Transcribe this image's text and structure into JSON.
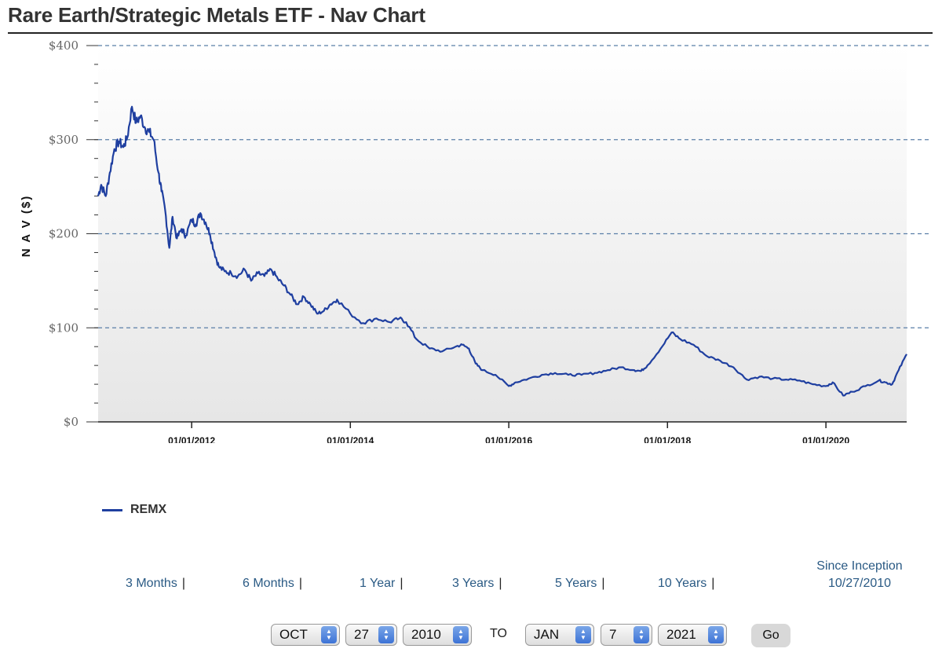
{
  "header": {
    "title": "Rare Earth/Strategic Metals ETF - Nav Chart"
  },
  "chart_data": {
    "type": "line",
    "title": "",
    "xlabel": "",
    "ylabel": "N A V ($)",
    "y_ticks": [
      "$0",
      "$100",
      "$200",
      "$300",
      "$400"
    ],
    "ylim": [
      0,
      400
    ],
    "xlim": [
      "2010-10-27",
      "2021-01-07"
    ],
    "x_ticks": [
      "01/01/2012",
      "01/01/2014",
      "01/01/2016",
      "01/01/2018",
      "01/01/2020"
    ],
    "grid": true,
    "legend": "bottom-left",
    "colors": {
      "line": "#1f3fa0",
      "grid": "#5a7fa8",
      "plot_bg_top": "#ffffff",
      "plot_bg_bottom": "#e6e6e6"
    },
    "series": [
      {
        "name": "REMX",
        "x": [
          "2010-10-27",
          "2010-11-10",
          "2010-12-01",
          "2010-12-20",
          "2011-01-10",
          "2011-01-31",
          "2011-02-20",
          "2011-03-10",
          "2011-04-01",
          "2011-04-20",
          "2011-05-10",
          "2011-06-01",
          "2011-06-20",
          "2011-07-10",
          "2011-08-01",
          "2011-08-15",
          "2011-09-01",
          "2011-09-20",
          "2011-10-05",
          "2011-10-25",
          "2011-11-15",
          "2011-12-05",
          "2012-01-01",
          "2012-01-20",
          "2012-02-10",
          "2012-03-05",
          "2012-03-25",
          "2012-04-15",
          "2012-05-05",
          "2012-06-01",
          "2012-07-01",
          "2012-08-01",
          "2012-09-01",
          "2012-10-01",
          "2012-11-01",
          "2012-12-01",
          "2013-01-01",
          "2013-02-01",
          "2013-03-01",
          "2013-04-01",
          "2013-05-01",
          "2013-06-01",
          "2013-07-01",
          "2013-08-01",
          "2013-09-01",
          "2013-10-01",
          "2013-11-01",
          "2014-01-01",
          "2014-03-01",
          "2014-05-01",
          "2014-07-01",
          "2014-08-15",
          "2014-09-15",
          "2014-11-01",
          "2015-01-01",
          "2015-03-01",
          "2015-05-01",
          "2015-06-01",
          "2015-07-01",
          "2015-08-01",
          "2015-09-01",
          "2015-11-01",
          "2016-01-01",
          "2016-02-01",
          "2016-04-01",
          "2016-06-01",
          "2016-08-01",
          "2016-10-01",
          "2016-12-01",
          "2017-02-01",
          "2017-04-01",
          "2017-06-01",
          "2017-08-01",
          "2017-09-01",
          "2017-10-01",
          "2017-12-01",
          "2018-01-20",
          "2018-03-01",
          "2018-05-01",
          "2018-07-01",
          "2018-09-01",
          "2018-11-01",
          "2019-01-01",
          "2019-03-01",
          "2019-05-01",
          "2019-07-01",
          "2019-09-01",
          "2019-11-01",
          "2020-01-01",
          "2020-02-01",
          "2020-03-20",
          "2020-05-01",
          "2020-07-01",
          "2020-09-01",
          "2020-10-01",
          "2020-11-01",
          "2020-12-01",
          "2021-01-07"
        ],
        "values": [
          240,
          252,
          240,
          265,
          290,
          298,
          292,
          302,
          335,
          318,
          325,
          312,
          308,
          300,
          265,
          245,
          225,
          185,
          218,
          195,
          205,
          198,
          215,
          210,
          222,
          212,
          200,
          180,
          165,
          160,
          158,
          155,
          162,
          150,
          158,
          155,
          162,
          152,
          145,
          135,
          125,
          133,
          125,
          115,
          118,
          125,
          130,
          115,
          105,
          110,
          106,
          110,
          106,
          88,
          78,
          75,
          80,
          82,
          78,
          62,
          55,
          50,
          38,
          42,
          46,
          50,
          52,
          50,
          50,
          52,
          55,
          58,
          55,
          54,
          60,
          78,
          95,
          88,
          82,
          70,
          65,
          58,
          45,
          48,
          46,
          45,
          44,
          40,
          38,
          42,
          28,
          32,
          38,
          44,
          42,
          40,
          55,
          72
        ]
      }
    ]
  },
  "legend": {
    "series_label": "REMX"
  },
  "ranges": {
    "r3m": "3 Months",
    "r6m": "6 Months",
    "r1y": "1 Year",
    "r3y": "3 Years",
    "r5y": "5 Years",
    "r10y": "10 Years",
    "separator": "|",
    "inception_label": "Since Inception",
    "inception_date": "10/27/2010"
  },
  "controls": {
    "from_month": "OCT",
    "from_day": "27",
    "from_year": "2010",
    "to_label": "TO",
    "to_month": "JAN",
    "to_day": "7",
    "to_year": "2021",
    "go_label": "Go"
  }
}
